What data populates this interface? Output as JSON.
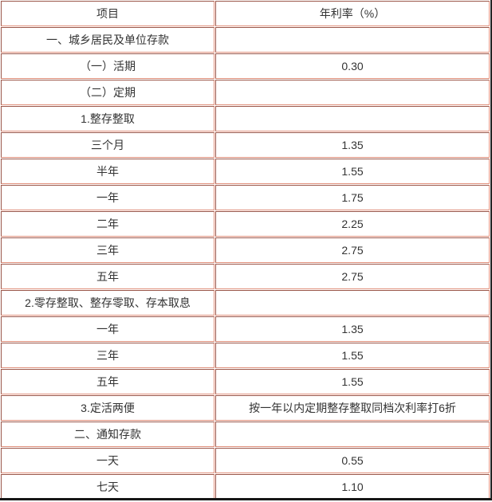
{
  "table": {
    "columns": [
      "项目",
      "年利率（%）"
    ],
    "rows": [
      {
        "item": "一、城乡居民及单位存款",
        "rate": ""
      },
      {
        "item": "（一）活期",
        "rate": "0.30"
      },
      {
        "item": "（二）定期",
        "rate": ""
      },
      {
        "item": "1.整存整取",
        "rate": ""
      },
      {
        "item": "三个月",
        "rate": "1.35"
      },
      {
        "item": "半年",
        "rate": "1.55"
      },
      {
        "item": "一年",
        "rate": "1.75"
      },
      {
        "item": "二年",
        "rate": "2.25"
      },
      {
        "item": "三年",
        "rate": "2.75"
      },
      {
        "item": "五年",
        "rate": "2.75"
      },
      {
        "item": "2.零存整取、整存零取、存本取息",
        "rate": ""
      },
      {
        "item": "一年",
        "rate": "1.35"
      },
      {
        "item": "三年",
        "rate": "1.55"
      },
      {
        "item": "五年",
        "rate": "1.55"
      },
      {
        "item": "3.定活两便",
        "rate": "按一年以内定期整存整取同档次利率打6折"
      },
      {
        "item": "二、通知存款",
        "rate": ""
      },
      {
        "item": "一天",
        "rate": "0.55"
      },
      {
        "item": "七天",
        "rate": "1.10"
      }
    ],
    "colors": {
      "border_light": "#E0907C",
      "border_dark": "#9A5649",
      "frame_dark": "#1B1B1B",
      "text": "#333333",
      "background": "#FFFFFF"
    }
  }
}
